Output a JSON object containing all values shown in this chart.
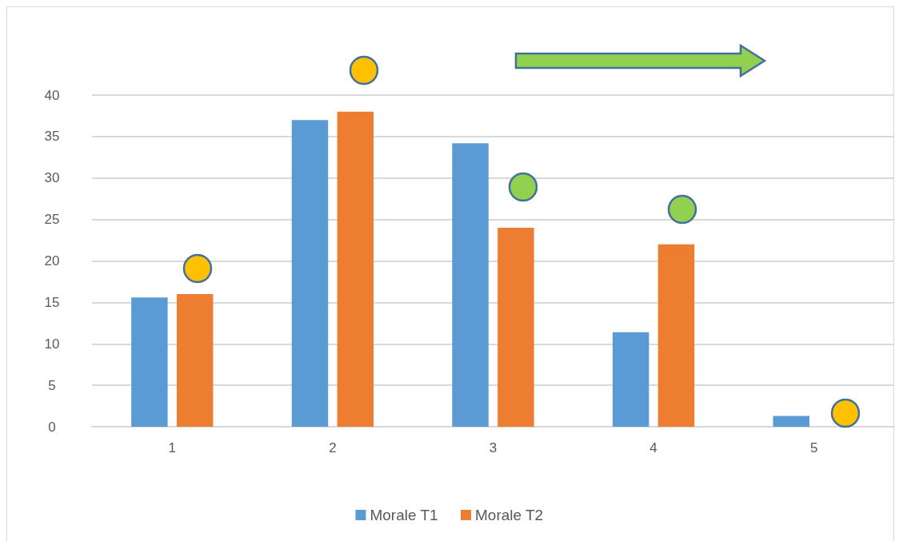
{
  "chart_data": {
    "type": "bar",
    "categories": [
      "1",
      "2",
      "3",
      "4",
      "5"
    ],
    "series": [
      {
        "name": "Morale T1",
        "color": "#5b9bd5",
        "values": [
          15.6,
          37,
          34.2,
          11.4,
          1.3
        ]
      },
      {
        "name": "Morale T2",
        "color": "#ed7d31",
        "values": [
          16,
          38,
          24,
          22,
          0
        ]
      }
    ],
    "ylim": [
      0,
      40
    ],
    "yticks": [
      0,
      5,
      10,
      15,
      20,
      25,
      30,
      35,
      40
    ],
    "grid": "y",
    "legend": "bottom"
  }
}
